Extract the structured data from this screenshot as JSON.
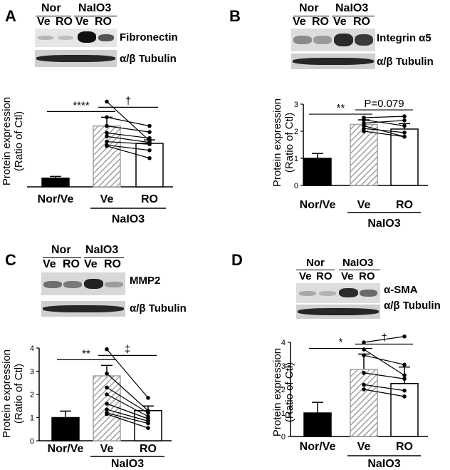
{
  "panels": [
    {
      "id": "A",
      "letter": "A",
      "blot_header": {
        "group1": "Nor",
        "group2": "NaIO3",
        "lanes": [
          "Ve",
          "RO",
          "Ve",
          "RO"
        ]
      },
      "blot_labels": [
        "Fibronectin",
        "α/β Tubulin"
      ],
      "chart_data": {
        "type": "bar",
        "categories": [
          "Nor/Ve",
          "Ve",
          "RO"
        ],
        "values": [
          1.0,
          7.0,
          5.0
        ],
        "errors": [
          0.2,
          1.0,
          0.4
        ],
        "ylim": [
          0,
          10
        ],
        "ticks": [],
        "ylabel": "Protein expression (Ratio of Ctl)",
        "group_label": "NaIO3",
        "pairs": [
          [
            9.8,
            5.3
          ],
          [
            8.0,
            7.0
          ],
          [
            7.0,
            6.3
          ],
          [
            6.2,
            5.6
          ],
          [
            5.8,
            5.1
          ],
          [
            5.2,
            4.9
          ],
          [
            4.8,
            4.2
          ],
          [
            4.7,
            3.3
          ]
        ],
        "annotations": [
          {
            "text": "****",
            "span": [
              0,
              1
            ]
          },
          {
            "text": "†",
            "span": [
              1,
              2
            ]
          }
        ]
      }
    },
    {
      "id": "B",
      "letter": "B",
      "blot_header": {
        "group1": "Nor",
        "group2": "NaIO3",
        "lanes": [
          "Ve",
          "RO",
          "Ve",
          "RO"
        ]
      },
      "blot_labels": [
        "Integrin α5",
        "α/β Tubulin"
      ],
      "chart_data": {
        "type": "bar",
        "categories": [
          "Nor/Ve",
          "Ve",
          "RO"
        ],
        "values": [
          1.0,
          2.25,
          2.08
        ],
        "errors": [
          0.18,
          0.17,
          0.2
        ],
        "ylim": [
          0,
          3
        ],
        "ticks": [
          "0",
          "1",
          "2",
          "3"
        ],
        "ylabel": "Protein expression (Ratio of Ctl)",
        "group_label": "NaIO3",
        "pairs": [
          [
            2.5,
            2.55
          ],
          [
            2.42,
            2.2
          ],
          [
            2.3,
            2.4
          ],
          [
            2.2,
            1.8
          ],
          [
            2.1,
            1.95
          ],
          [
            2.0,
            1.8
          ]
        ],
        "annotations": [
          {
            "text": "**",
            "span": [
              0,
              1
            ]
          },
          {
            "text": "P=0.079",
            "span": [
              1,
              2
            ]
          }
        ]
      }
    },
    {
      "id": "C",
      "letter": "C",
      "blot_header": {
        "group1": "Nor",
        "group2": "NaIO3",
        "lanes": [
          "Ve",
          "RO",
          "Ve",
          "RO"
        ]
      },
      "blot_labels": [
        "MMP2",
        "α/β Tubulin"
      ],
      "chart_data": {
        "type": "bar",
        "categories": [
          "Nor/Ve",
          "Ve",
          "RO"
        ],
        "values": [
          1.0,
          2.8,
          1.3
        ],
        "errors": [
          0.28,
          0.45,
          0.2
        ],
        "ylim": [
          0,
          4
        ],
        "ticks": [
          "0",
          "1",
          "2",
          "3",
          "4"
        ],
        "ylabel": "Protein expression (Ratio of Ctl)",
        "group_label": "NaIO3",
        "pairs": [
          [
            3.95,
            1.85
          ],
          [
            2.9,
            1.3
          ],
          [
            2.3,
            1.2
          ],
          [
            2.0,
            1.05
          ],
          [
            1.6,
            0.95
          ],
          [
            1.35,
            0.85
          ],
          [
            1.2,
            0.75
          ],
          [
            1.15,
            0.55
          ]
        ],
        "annotations": [
          {
            "text": "**",
            "span": [
              0,
              1
            ]
          },
          {
            "text": "‡",
            "span": [
              1,
              2
            ]
          }
        ]
      }
    },
    {
      "id": "D",
      "letter": "D",
      "blot_header": {
        "group1": "Nor",
        "group2": "NaIO3",
        "lanes": [
          "Ve",
          "RO",
          "Ve",
          "RO"
        ]
      },
      "blot_labels": [
        "α-SMA",
        "α/β Tubulin"
      ],
      "chart_data": {
        "type": "bar",
        "categories": [
          "Nor/Ve",
          "Ve",
          "RO"
        ],
        "values": [
          1.0,
          2.85,
          2.25
        ],
        "errors": [
          0.45,
          0.65,
          0.7
        ],
        "ylim": [
          0,
          4
        ],
        "ticks": [
          "0",
          "1",
          "2",
          "3",
          "4"
        ],
        "ylabel": "Protein expression (Ratio of Ctl)",
        "group_label": "NaIO3",
        "pairs": [
          [
            4.0,
            4.25
          ],
          [
            3.7,
            2.6
          ],
          [
            3.45,
            3.05
          ],
          [
            2.7,
            2.45
          ],
          [
            2.2,
            1.95
          ],
          [
            2.0,
            1.7
          ]
        ],
        "annotations": [
          {
            "text": "*",
            "span": [
              0,
              1
            ]
          },
          {
            "text": "†",
            "span": [
              1,
              2
            ]
          }
        ]
      }
    }
  ],
  "colors": {
    "control_bar": "#000000",
    "vehicle_hatch": "#a0a0a0",
    "ro_bar": "#ffffff"
  }
}
